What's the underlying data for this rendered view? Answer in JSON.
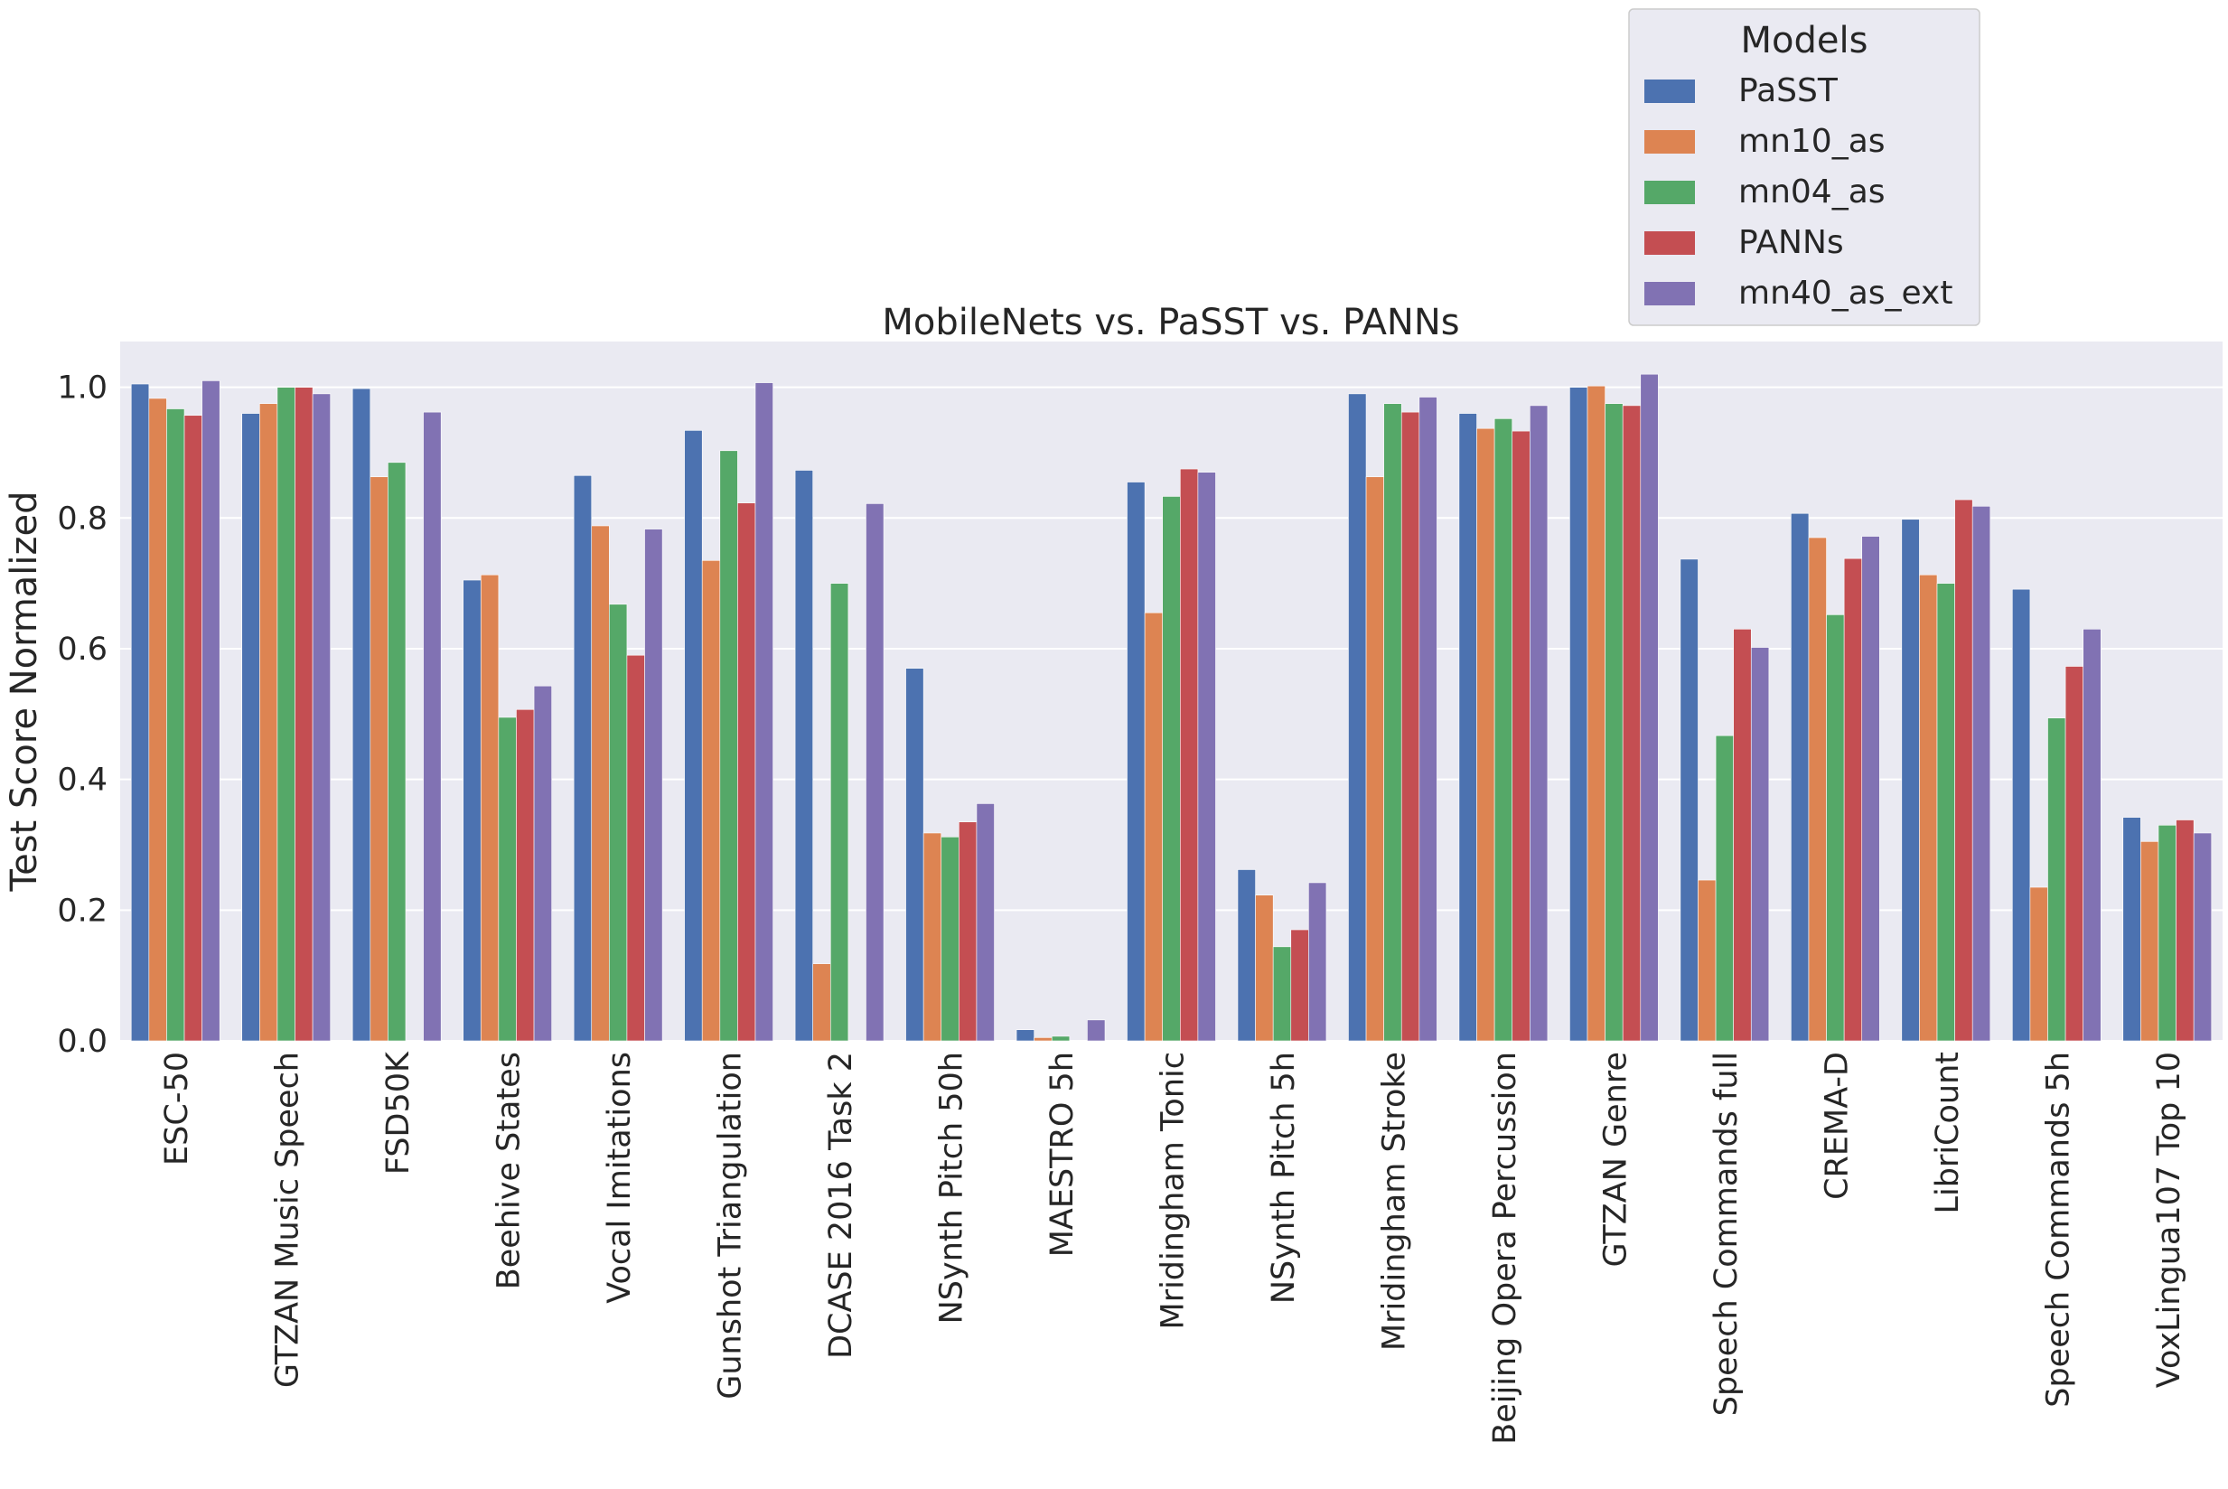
{
  "chart_data": {
    "type": "bar",
    "title": "MobileNets vs. PaSST vs. PANNs",
    "xlabel": "",
    "ylabel": "Test Score Normalized",
    "ylim": [
      0,
      1.07
    ],
    "yticks": [
      "0.0",
      "0.2",
      "0.4",
      "0.6",
      "0.8",
      "1.0"
    ],
    "ytick_values": [
      0,
      0.2,
      0.4,
      0.6,
      0.8,
      1.0
    ],
    "grid": true,
    "legend": {
      "title": "Models",
      "placement": "top-right, above plot"
    },
    "categories": [
      "ESC-50",
      "GTZAN Music Speech",
      "FSD50K",
      "Beehive States",
      "Vocal Imitations",
      "Gunshot Triangulation",
      "DCASE 2016 Task 2",
      "NSynth Pitch 50h",
      "MAESTRO 5h",
      "Mridingham Tonic",
      "NSynth Pitch 5h",
      "Mridingham Stroke",
      "Beijing Opera Percussion",
      "GTZAN Genre",
      "Speech Commands full",
      "CREMA-D",
      "LibriCount",
      "Speech Commands 5h",
      "VoxLingua107 Top 10"
    ],
    "series": [
      {
        "name": "PaSST",
        "color": "#4c72b0",
        "values": [
          1.005,
          0.96,
          0.998,
          0.705,
          0.865,
          0.934,
          0.873,
          0.57,
          0.017,
          0.855,
          0.262,
          0.99,
          0.96,
          1.0,
          0.737,
          0.807,
          0.798,
          0.691,
          0.342
        ]
      },
      {
        "name": "mn10_as",
        "color": "#dd8452",
        "values": [
          0.983,
          0.975,
          0.863,
          0.713,
          0.788,
          0.735,
          0.118,
          0.318,
          0.005,
          0.655,
          0.223,
          0.863,
          0.937,
          1.002,
          0.246,
          0.77,
          0.713,
          0.235,
          0.305
        ]
      },
      {
        "name": "mn04_as",
        "color": "#55a868",
        "values": [
          0.967,
          1.0,
          0.885,
          0.495,
          0.668,
          0.903,
          0.7,
          0.312,
          0.007,
          0.833,
          0.144,
          0.975,
          0.952,
          0.975,
          0.467,
          0.652,
          0.7,
          0.494,
          0.33
        ]
      },
      {
        "name": "PANNs",
        "color": "#c44e52",
        "values": [
          0.957,
          1.0,
          0.0,
          0.507,
          0.59,
          0.823,
          0.0,
          0.335,
          0.0,
          0.875,
          0.17,
          0.962,
          0.933,
          0.972,
          0.63,
          0.738,
          0.828,
          0.573,
          0.338
        ]
      },
      {
        "name": "mn40_as_ext",
        "color": "#8172b3",
        "values": [
          1.01,
          0.99,
          0.962,
          0.543,
          0.783,
          1.007,
          0.822,
          0.363,
          0.032,
          0.87,
          0.242,
          0.985,
          0.972,
          1.02,
          0.602,
          0.772,
          0.818,
          0.63,
          0.318
        ]
      }
    ]
  }
}
